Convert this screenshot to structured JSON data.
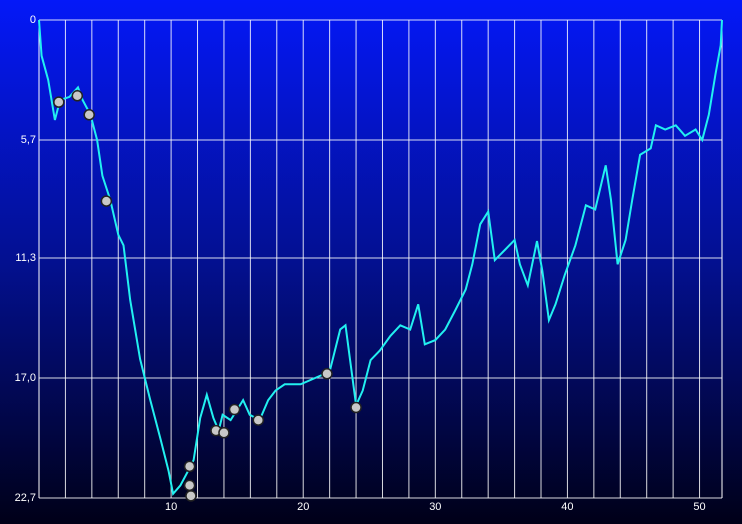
{
  "chart_data": {
    "type": "line",
    "x": [
      0,
      0.2,
      0.7,
      1.2,
      1.6,
      2.3,
      2.95,
      3.3,
      3.9,
      4.4,
      4.8,
      5.4,
      6.0,
      6.4,
      6.9,
      7.65,
      8.4,
      9.2,
      9.8,
      10.15,
      10.7,
      11.3,
      11.7,
      12.2,
      12.7,
      13.2,
      13.6,
      13.9,
      14.5,
      15.0,
      15.45,
      15.95,
      16.7,
      17.35,
      17.9,
      18.6,
      19.8,
      20.9,
      22.0,
      22.8,
      23.2,
      23.55,
      24.0,
      24.5,
      25.1,
      25.8,
      26.6,
      27.35,
      28.1,
      28.7,
      29.2,
      30.0,
      30.75,
      31.5,
      32.3,
      32.8,
      33.4,
      34.0,
      34.5,
      35.3,
      36.0,
      36.4,
      37.0,
      37.7,
      38.1,
      38.6,
      39.1,
      39.8,
      40.6,
      41.4,
      42.1,
      42.9,
      43.3,
      43.8,
      44.4,
      44.9,
      45.5,
      46.3,
      46.7,
      47.4,
      48.2,
      48.9,
      49.7,
      50.2,
      50.7,
      51.2,
      51.6,
      51.7
    ],
    "series": [
      {
        "color": "#22f0f0",
        "values": [
          0,
          1.7,
          2.85,
          4.75,
          3.8,
          3.65,
          3.2,
          3.8,
          4.5,
          5.7,
          7.4,
          8.55,
          10.2,
          10.7,
          13.3,
          16.1,
          18.0,
          19.9,
          21.4,
          22.5,
          22.1,
          21.4,
          20.9,
          18.9,
          17.8,
          18.9,
          19.5,
          18.75,
          19.0,
          18.5,
          18.05,
          18.75,
          19.0,
          18.05,
          17.6,
          17.3,
          17.3,
          17.0,
          16.7,
          14.7,
          14.5,
          16.15,
          18.3,
          17.6,
          16.15,
          15.7,
          15.0,
          14.5,
          14.7,
          13.5,
          15.4,
          15.2,
          14.7,
          13.8,
          12.8,
          11.6,
          9.7,
          9.1,
          11.4,
          10.9,
          10.45,
          11.6,
          12.6,
          10.5,
          11.9,
          14.25,
          13.5,
          12.1,
          10.7,
          8.8,
          9.0,
          6.9,
          8.55,
          11.6,
          10.45,
          8.55,
          6.4,
          6.1,
          5.0,
          5.2,
          5.0,
          5.5,
          5.2,
          5.7,
          4.5,
          2.6,
          1.2,
          0
        ]
      }
    ],
    "xlim": [
      0,
      51.7
    ],
    "xticks": [
      10,
      20,
      30,
      40,
      50
    ],
    "xgrid": [
      2,
      4,
      6,
      8,
      10,
      12,
      14,
      16,
      18,
      20,
      22,
      24,
      26,
      28,
      30,
      32,
      34,
      36,
      38,
      40,
      42,
      44,
      46,
      48,
      50
    ],
    "ylim": [
      22.7,
      0
    ],
    "yticks": [
      0,
      {
        "value": 5.7,
        "label": "5,7"
      },
      {
        "value": 11.3,
        "label": "11,3"
      },
      {
        "value": 17.0,
        "label": "17,0"
      },
      {
        "value": 22.7,
        "label": "22,7"
      }
    ],
    "events": [
      {
        "x": 1.5,
        "y": 3.9
      },
      {
        "x": 2.9,
        "y": 3.6
      },
      {
        "x": 3.8,
        "y": 4.5
      },
      {
        "x": 5.1,
        "y": 8.6
      },
      {
        "x": 11.4,
        "y": 21.2
      },
      {
        "x": 11.4,
        "y": 22.1
      },
      {
        "x": 11.5,
        "y": 22.6
      },
      {
        "x": 13.4,
        "y": 19.5
      },
      {
        "x": 14.0,
        "y": 19.6
      },
      {
        "x": 14.8,
        "y": 18.5
      },
      {
        "x": 16.6,
        "y": 19.0
      },
      {
        "x": 21.8,
        "y": 16.8
      },
      {
        "x": 24.0,
        "y": 18.4
      }
    ]
  }
}
